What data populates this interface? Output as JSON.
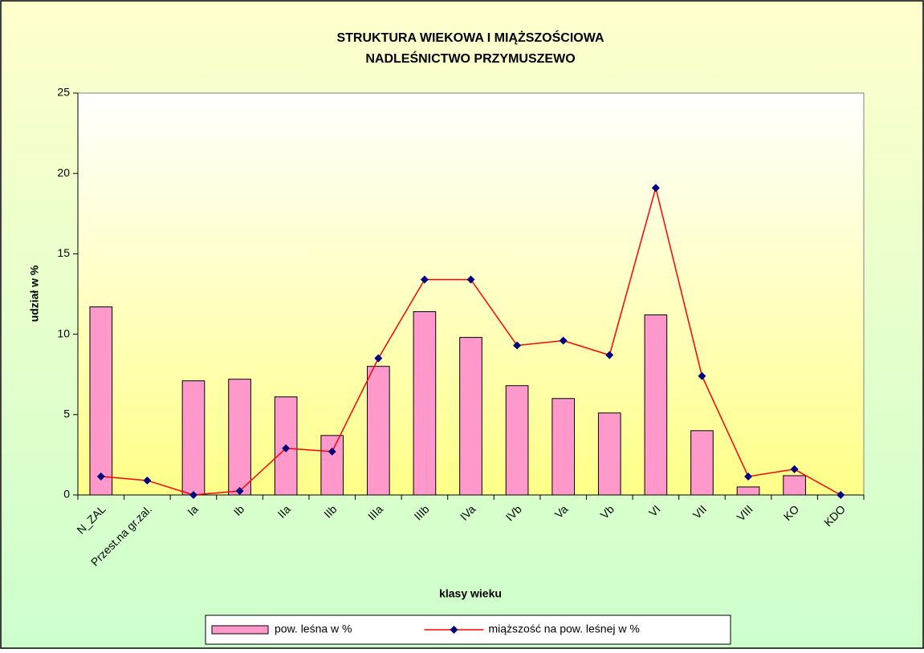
{
  "chart_data": {
    "type": "bar_line",
    "title": "STRUKTURA WIEKOWA I MIĄŻSZOŚCIOWA",
    "subtitle": "NADLEŚNICTWO PRZYMUSZEWO",
    "x_label": "klasy wieku",
    "y_label": "udział w %",
    "categories": [
      "N_ZAL",
      "Przest.na gr.zal.",
      "Ia",
      "Ib",
      "IIa",
      "IIb",
      "IIIa",
      "IIIb",
      "IVa",
      "IVb",
      "Va",
      "Vb",
      "VI",
      "VII",
      "VIII",
      "KO",
      "KDO"
    ],
    "series": [
      {
        "name": "pow. leśna w %",
        "type": "bar",
        "color": "#ff99cc",
        "values": [
          11.7,
          0,
          7.1,
          7.2,
          6.1,
          3.7,
          8.0,
          11.4,
          9.8,
          6.8,
          6.0,
          5.1,
          11.2,
          4.0,
          0.5,
          1.2,
          0
        ]
      },
      {
        "name": "miąższość na pow. leśnej w %",
        "type": "line",
        "color": "#ff0000",
        "marker_color": "#000080",
        "values": [
          1.15,
          0.9,
          0,
          0.25,
          2.9,
          2.7,
          8.5,
          13.4,
          13.4,
          9.3,
          9.6,
          8.7,
          19.1,
          7.4,
          1.15,
          1.6,
          0
        ]
      }
    ],
    "ylim": [
      0,
      25
    ],
    "yticks": [
      0,
      5,
      10,
      15,
      20,
      25
    ],
    "grid": false,
    "legend": "bottom"
  }
}
